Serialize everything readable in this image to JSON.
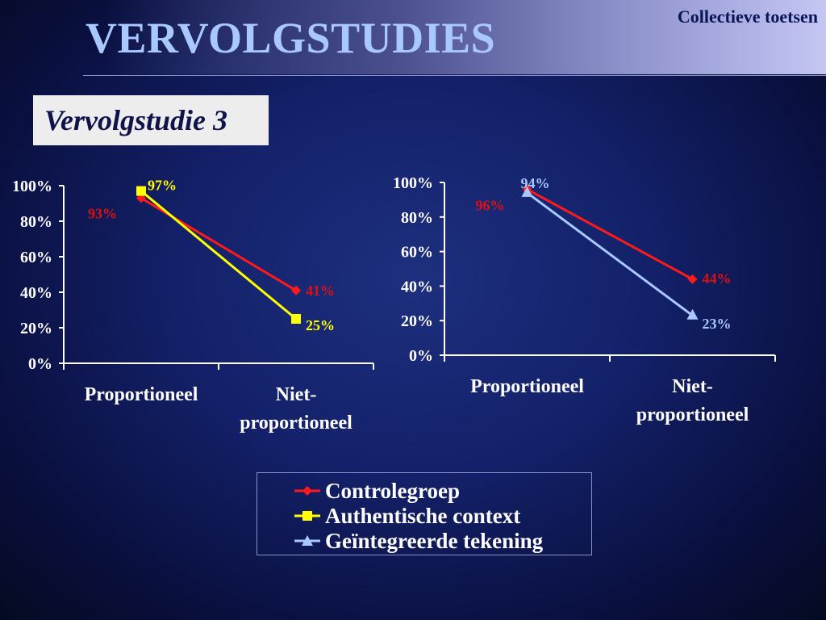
{
  "header": {
    "section_label": "Collectieve toetsen",
    "title": "VERVOLGSTUDIES",
    "subtitle": "Vervolgstudie 3"
  },
  "series_styles": [
    {
      "name": "Controlegroep",
      "color": "#ff1a1a",
      "marker": "diamond",
      "label_color": "#e01010"
    },
    {
      "name": "Authentische context",
      "color": "#ffff00",
      "marker": "square",
      "label_color": "#ffff00"
    },
    {
      "name": "Geïntegreerde tekening",
      "color": "#a8c8ff",
      "marker": "triangle",
      "label_color": "#a8c8ff"
    }
  ],
  "chart_data": [
    {
      "type": "line",
      "categories": [
        "Proportioneel",
        "Niet-proportioneel"
      ],
      "category_lines": [
        [
          "Proportioneel"
        ],
        [
          "Niet-",
          "proportioneel"
        ]
      ],
      "ylim": [
        0,
        100
      ],
      "yticks": [
        "0%",
        "20%",
        "40%",
        "60%",
        "80%",
        "100%"
      ],
      "series": [
        {
          "name": "Controlegroep",
          "values": [
            93,
            41
          ],
          "labels": [
            "93%",
            "41%"
          ]
        },
        {
          "name": "Authentische context",
          "values": [
            97,
            25
          ],
          "labels": [
            "97%",
            "25%"
          ]
        }
      ]
    },
    {
      "type": "line",
      "categories": [
        "Proportioneel",
        "Niet-proportioneel"
      ],
      "category_lines": [
        [
          "Proportioneel"
        ],
        [
          "Niet-",
          "proportioneel"
        ]
      ],
      "ylim": [
        0,
        100
      ],
      "yticks": [
        "0%",
        "20%",
        "40%",
        "60%",
        "80%",
        "100%"
      ],
      "series": [
        {
          "name": "Controlegroep",
          "values": [
            96,
            44
          ],
          "labels": [
            "96%",
            "44%"
          ]
        },
        {
          "name": "Geïntegreerde tekening",
          "values": [
            94,
            23
          ],
          "labels": [
            "94%",
            "23%"
          ]
        }
      ]
    }
  ],
  "legend": {
    "items": [
      "Controlegroep",
      "Authentische context",
      "Geïntegreerde tekening"
    ]
  }
}
